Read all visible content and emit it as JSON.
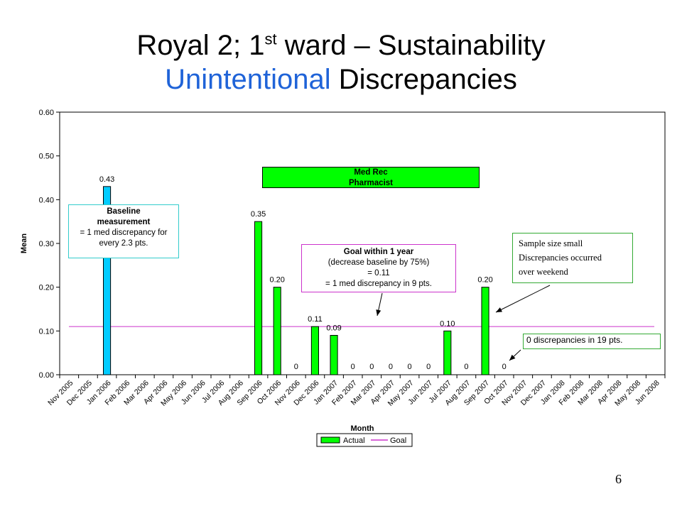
{
  "slide": {
    "title_line1_pre": "Royal 2; 1",
    "title_line1_sup": "st",
    "title_line1_post": " ward – Sustainability",
    "title_line2_blue": "Unintentional",
    "title_line2_rest": " Discrepancies",
    "slide_number": "6",
    "colors": {
      "title_blue": "#1f63d8",
      "bar_actual": "#00ff00",
      "bar_baseline": "#00ccff",
      "goal_line": "#cc33cc"
    }
  },
  "chart_data": {
    "type": "bar",
    "xlabel": "Month",
    "ylabel": "Mean",
    "ylim": [
      0,
      0.6
    ],
    "yticks": [
      "0.00",
      "0.10",
      "0.20",
      "0.30",
      "0.40",
      "0.50",
      "0.60"
    ],
    "categories": [
      "Nov 2005",
      "Dec 2005",
      "Jan 2006",
      "Feb 2006",
      "Mar 2006",
      "Apr 2006",
      "May 2006",
      "Jun 2006",
      "Jul 2006",
      "Aug 2006",
      "Sep 2006",
      "Oct 2006",
      "Nov 2006",
      "Dec 2006",
      "Jan 2007",
      "Feb 2007",
      "Mar 2007",
      "Apr 2007",
      "May 2007",
      "Jun 2007",
      "Jul 2007",
      "Aug 2007",
      "Sep 2007",
      "Oct 2007",
      "Nov 2007",
      "Dec 2007",
      "Jan 2008",
      "Feb 2008",
      "Mar 2008",
      "Apr 2008",
      "May 2008",
      "Jun 2008"
    ],
    "series": [
      {
        "name": "Actual",
        "values": [
          null,
          null,
          0.43,
          null,
          null,
          null,
          null,
          null,
          null,
          null,
          0.35,
          0.2,
          0,
          0.11,
          0.09,
          0,
          0,
          0,
          0,
          0,
          0.1,
          0,
          0.2,
          0,
          null,
          null,
          null,
          null,
          null,
          null,
          null,
          null
        ],
        "labels": [
          null,
          null,
          "0.43",
          null,
          null,
          null,
          null,
          null,
          null,
          null,
          "0.35",
          "0.20",
          "0",
          "0.11",
          "0.09",
          "0",
          "0",
          "0",
          "0",
          "0",
          "0.10",
          "0",
          "0.20",
          "0",
          null,
          null,
          null,
          null,
          null,
          null,
          null,
          null
        ]
      },
      {
        "name": "Goal",
        "constant": 0.11
      }
    ],
    "legend": {
      "placement": "bottom",
      "items": [
        "Actual",
        "Goal"
      ]
    },
    "annotations": {
      "baseline_title": "Baseline measurement",
      "baseline_text": "= 1 med discrepancy for every 2.3 pts.",
      "medrec_line1": "Med Rec",
      "medrec_line2": "Pharmacist",
      "goal_title": "Goal within 1 year",
      "goal_line1": "(decrease baseline by 75%)",
      "goal_line2": "= 0.11",
      "goal_line3": "= 1 med discrepancy in 9 pts.",
      "sample_line1": "Sample size small",
      "sample_line2": "Discrepancies occurred",
      "sample_line3": "over weekend",
      "zero_text": "0 discrepancies in 19 pts."
    }
  }
}
